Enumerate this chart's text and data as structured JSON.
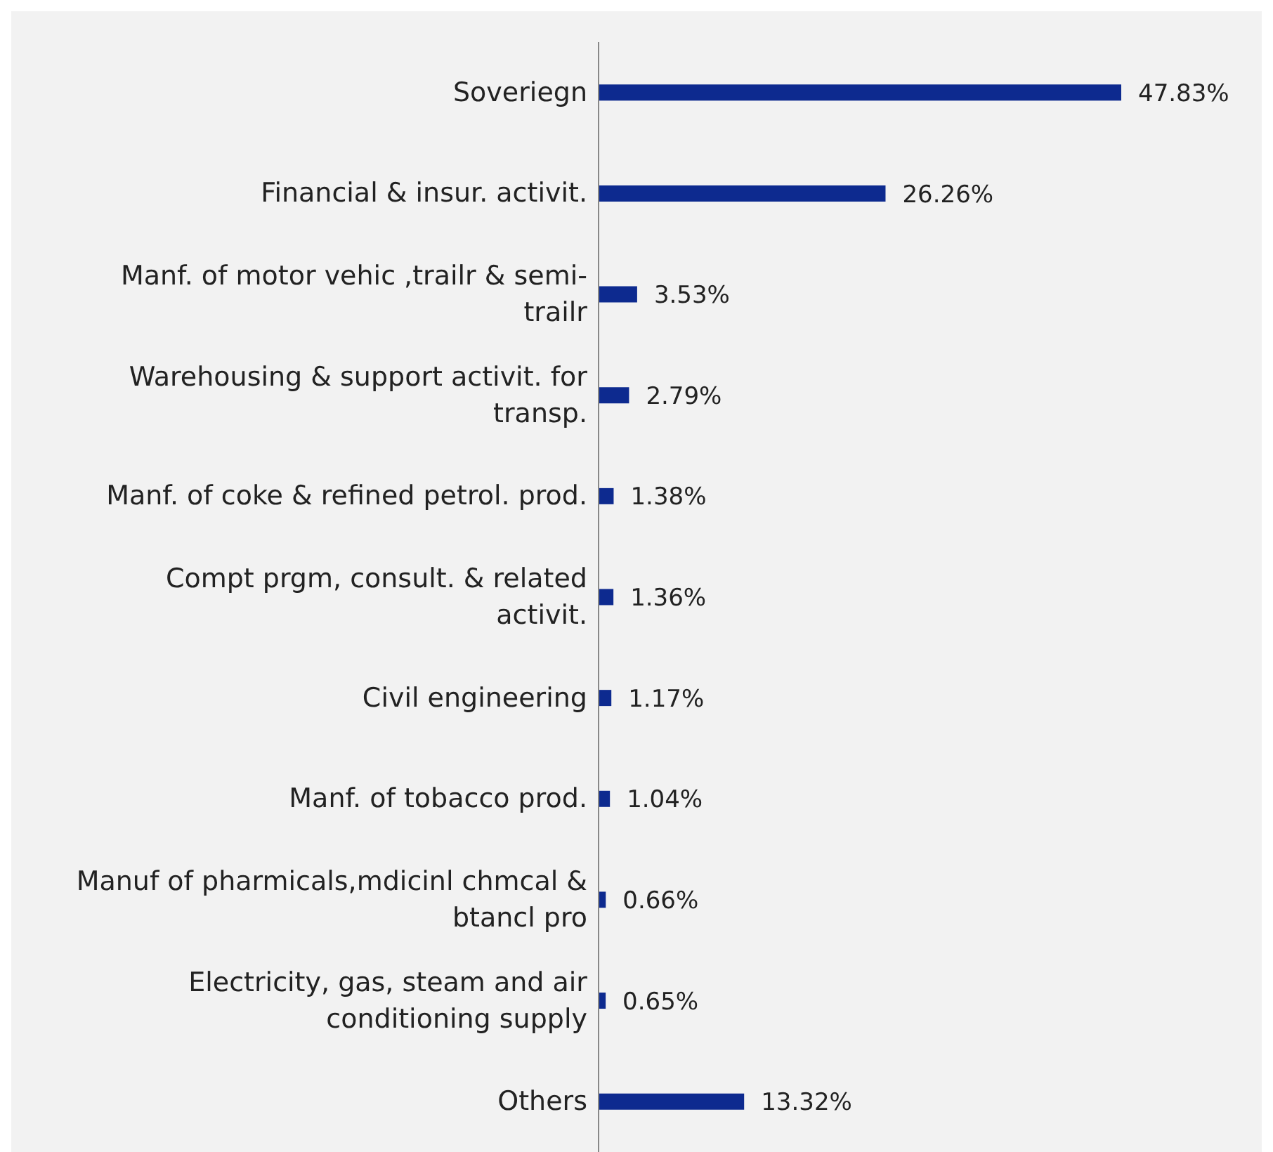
{
  "chart_data": {
    "type": "bar",
    "orientation": "horizontal",
    "categories": [
      "Soveriegn",
      "Financial & insur. activit.",
      "Manf. of motor vehic ,trailr & semi-trailr",
      "Warehousing & support activit. for transp.",
      "Manf. of coke & refined petrol. prod.",
      "Compt prgm, consult. & related activit.",
      "Civil engineering",
      "Manf. of tobacco prod.",
      "Manuf of pharmicals,mdicinl chmcal & btancl pro",
      "Electricity, gas, steam and air conditioning supply",
      "Others"
    ],
    "values": [
      47.83,
      26.26,
      3.53,
      2.79,
      1.38,
      1.36,
      1.17,
      1.04,
      0.66,
      0.65,
      13.32
    ],
    "value_labels": [
      "47.83%",
      "26.26%",
      "3.53%",
      "2.79%",
      "1.38%",
      "1.36%",
      "1.17%",
      "1.04%",
      "0.66%",
      "0.65%",
      "13.32%"
    ],
    "color": "#0d2a8f",
    "grid": false,
    "legend": false
  }
}
